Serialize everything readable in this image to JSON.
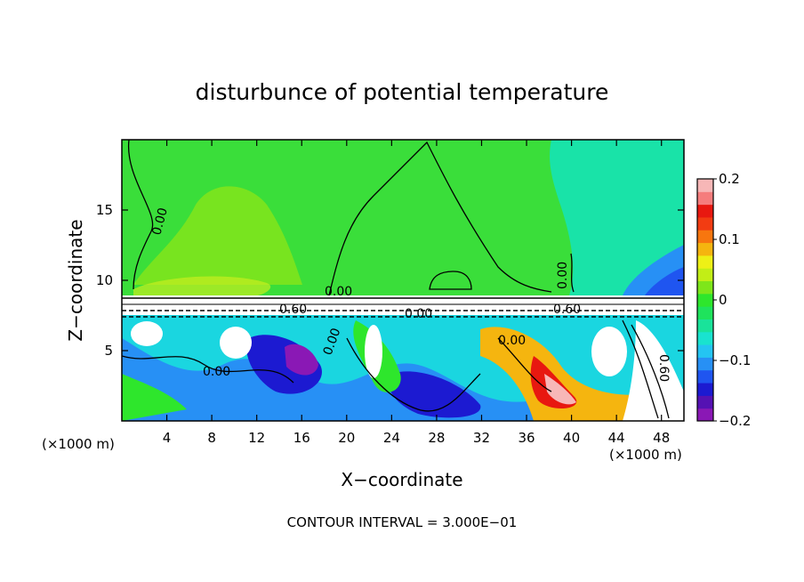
{
  "chart_data": {
    "type": "heatmap",
    "title": "disturbunce of potential temperature",
    "xlabel": "X−coordinate",
    "ylabel": "Z−coordinate",
    "x_unit_left": "(×1000 m)",
    "x_unit_right": "(×1000 m)",
    "xlim": [
      0,
      50
    ],
    "ylim": [
      0,
      20
    ],
    "x_ticks": [
      4,
      8,
      12,
      16,
      20,
      24,
      28,
      32,
      36,
      40,
      44,
      48
    ],
    "y_ticks": [
      5,
      10,
      15
    ],
    "colorbar": {
      "min": -0.2,
      "max": 0.2,
      "tick_values": [
        0.2,
        0.1,
        0,
        -0.1,
        -0.2
      ],
      "tick_labels": [
        "0.2",
        "0.1",
        "0",
        "−0.1",
        "−0.2"
      ],
      "colors": [
        "#8a18b5",
        "#5512b3",
        "#1c1ad1",
        "#1f55f0",
        "#2790f5",
        "#24c5f2",
        "#19e3cf",
        "#19e39a",
        "#1fe35c",
        "#2ee62c",
        "#7ee61a",
        "#c2ee16",
        "#eef016",
        "#f5b50f",
        "#f7760f",
        "#f23c12",
        "#e81810",
        "#f57d7d",
        "#f7b7b7"
      ]
    },
    "contour_labels": [
      "0.00",
      "0.00",
      "0.00",
      "0.00",
      "0.00",
      "0.00",
      "0.00",
      "0.60",
      "0.60",
      "0.60"
    ],
    "footer": "CONTOUR INTERVAL = 3.000E−01"
  }
}
